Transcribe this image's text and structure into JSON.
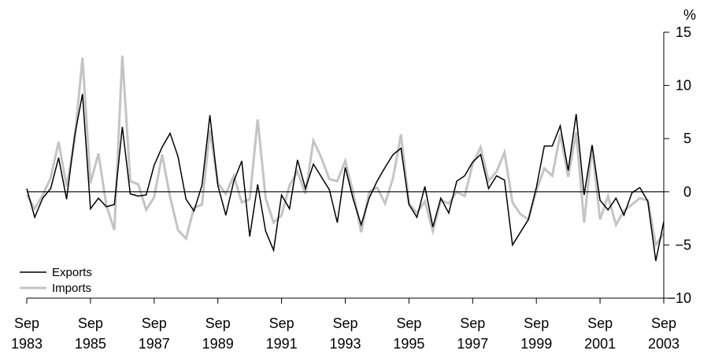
{
  "chart_data": {
    "type": "line",
    "yunit": "%",
    "ylim": [
      -10,
      15
    ],
    "yticks": [
      15,
      10,
      5,
      0,
      -5,
      -10
    ],
    "y_axis_side": "right",
    "grid": false,
    "zero_line": true,
    "legend_position": "bottom-left",
    "x_start": "1983-09",
    "x_end": "2003-09",
    "x_tick_labels": [
      {
        "month": "Sep",
        "year": "1983"
      },
      {
        "month": "Sep",
        "year": "1985"
      },
      {
        "month": "Sep",
        "year": "1987"
      },
      {
        "month": "Sep",
        "year": "1989"
      },
      {
        "month": "Sep",
        "year": "1991"
      },
      {
        "month": "Sep",
        "year": "1993"
      },
      {
        "month": "Sep",
        "year": "1995"
      },
      {
        "month": "Sep",
        "year": "1997"
      },
      {
        "month": "Sep",
        "year": "1999"
      },
      {
        "month": "Sep",
        "year": "2001"
      },
      {
        "month": "Sep",
        "year": "2003"
      }
    ],
    "x": [
      "1983-09",
      "1983-12",
      "1984-03",
      "1984-06",
      "1984-09",
      "1984-12",
      "1985-03",
      "1985-06",
      "1985-09",
      "1985-12",
      "1986-03",
      "1986-06",
      "1986-09",
      "1986-12",
      "1987-03",
      "1987-06",
      "1987-09",
      "1987-12",
      "1988-03",
      "1988-06",
      "1988-09",
      "1988-12",
      "1989-03",
      "1989-06",
      "1989-09",
      "1989-12",
      "1990-03",
      "1990-06",
      "1990-09",
      "1990-12",
      "1991-03",
      "1991-06",
      "1991-09",
      "1991-12",
      "1992-03",
      "1992-06",
      "1992-09",
      "1992-12",
      "1993-03",
      "1993-06",
      "1993-09",
      "1993-12",
      "1994-03",
      "1994-06",
      "1994-09",
      "1994-12",
      "1995-03",
      "1995-06",
      "1995-09",
      "1995-12",
      "1996-03",
      "1996-06",
      "1996-09",
      "1996-12",
      "1997-03",
      "1997-06",
      "1997-09",
      "1997-12",
      "1998-03",
      "1998-06",
      "1998-09",
      "1998-12",
      "1999-03",
      "1999-06",
      "1999-09",
      "1999-12",
      "2000-03",
      "2000-06",
      "2000-09",
      "2000-12",
      "2001-03",
      "2001-06",
      "2001-09",
      "2001-12",
      "2002-03",
      "2002-06",
      "2002-09",
      "2002-12",
      "2003-03",
      "2003-06",
      "2003-09"
    ],
    "series": [
      {
        "name": "Exports",
        "color": "#000000",
        "values": [
          0.3,
          -2.4,
          -0.6,
          0.3,
          3.2,
          -0.7,
          5.2,
          9.2,
          -1.6,
          -0.6,
          -1.4,
          -1.2,
          6.1,
          -0.2,
          -0.4,
          -0.3,
          2.5,
          4.2,
          5.5,
          3.3,
          -0.7,
          -1.8,
          0.6,
          7.2,
          0.6,
          -2.2,
          1.0,
          2.9,
          -4.2,
          0.7,
          -3.7,
          -5.5,
          -0.3,
          -1.6,
          3.0,
          0.3,
          2.6,
          1.4,
          0.2,
          -2.9,
          2.3,
          -0.7,
          -3.1,
          -0.6,
          1.0,
          2.3,
          3.5,
          4.1,
          -1.2,
          -2.4,
          0.5,
          -3.3,
          -0.6,
          -2.0,
          1.0,
          1.5,
          2.8,
          3.5,
          0.3,
          1.5,
          1.1,
          -5.0,
          -3.8,
          -2.6,
          0.4,
          4.3,
          4.3,
          6.2,
          2.0,
          7.3,
          -0.3,
          4.4,
          -0.8,
          -1.7,
          -0.6,
          -2.2,
          -0.1,
          0.4,
          -0.9,
          -6.5,
          -2.8
        ]
      },
      {
        "name": "Imports",
        "color": "#c4c4c4",
        "values": [
          -0.3,
          -1.6,
          -0.3,
          1.3,
          4.7,
          0.5,
          4.8,
          12.6,
          0.8,
          3.6,
          -1.3,
          -3.6,
          12.8,
          1.0,
          0.7,
          -1.7,
          -0.5,
          3.5,
          -0.5,
          -3.6,
          -4.4,
          -1.5,
          -1.2,
          5.8,
          0.8,
          -0.2,
          1.5,
          -1.0,
          -0.7,
          6.8,
          -0.6,
          -2.9,
          -2.2,
          0.6,
          1.9,
          -0.2,
          4.8,
          3.2,
          1.2,
          1.0,
          2.9,
          -0.1,
          -3.8,
          0.0,
          0.4,
          -1.1,
          1.3,
          5.4,
          -1.1,
          -2.0,
          -0.9,
          -3.7,
          -0.8,
          -1.1,
          0.0,
          -0.4,
          2.6,
          4.2,
          1.0,
          1.9,
          3.7,
          -1.0,
          -2.1,
          -2.6,
          0.1,
          2.2,
          1.5,
          5.4,
          1.4,
          5.6,
          -2.9,
          4.2,
          -2.6,
          -0.4,
          -3.1,
          -1.8,
          -1.2,
          -0.6,
          -0.8,
          -5.0,
          -3.9
        ]
      }
    ]
  }
}
